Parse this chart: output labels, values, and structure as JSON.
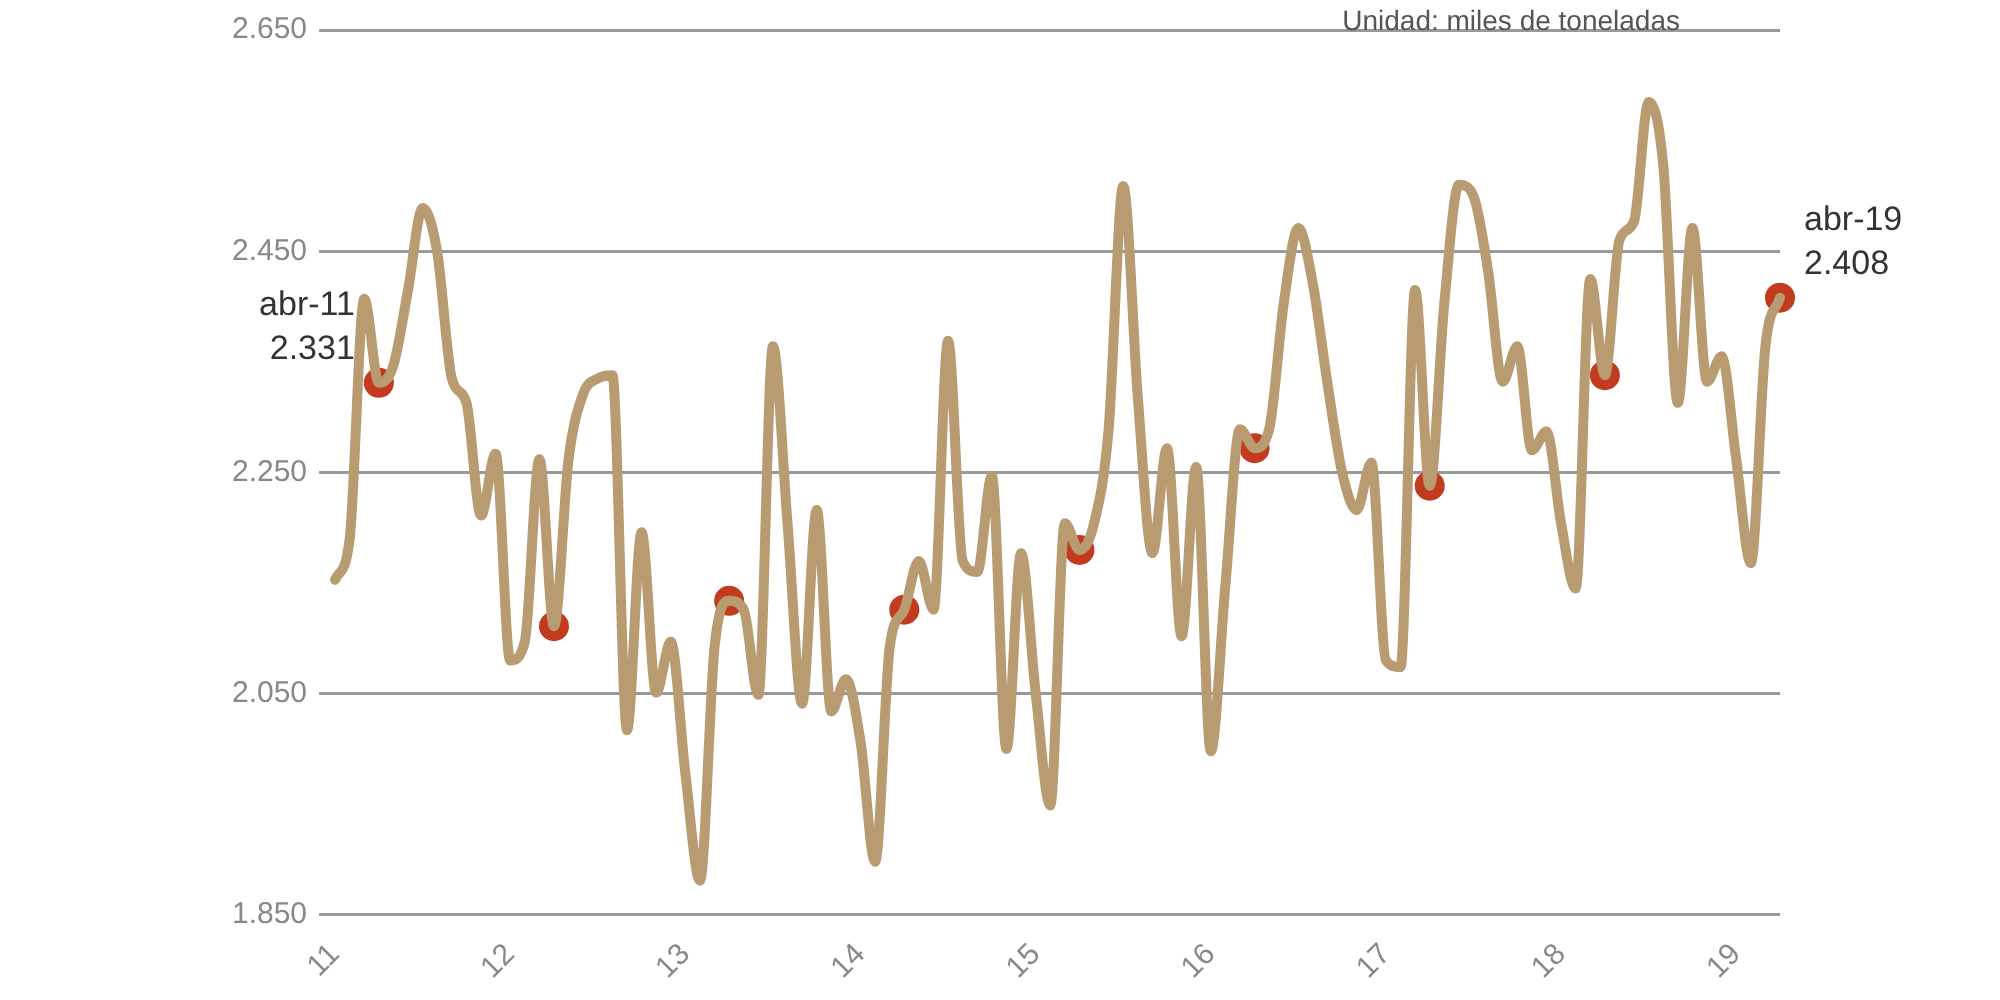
{
  "chart_data": {
    "type": "line",
    "categories": [
      "11",
      null,
      null,
      null,
      null,
      null,
      null,
      null,
      null,
      null,
      null,
      null,
      "12",
      null,
      null,
      null,
      null,
      null,
      null,
      null,
      null,
      null,
      null,
      null,
      "13",
      null,
      null,
      null,
      null,
      null,
      null,
      null,
      null,
      null,
      null,
      null,
      "14",
      null,
      null,
      null,
      null,
      null,
      null,
      null,
      null,
      null,
      null,
      null,
      "15",
      null,
      null,
      null,
      null,
      null,
      null,
      null,
      null,
      null,
      null,
      null,
      "16",
      null,
      null,
      null,
      null,
      null,
      null,
      null,
      null,
      null,
      null,
      null,
      "17",
      null,
      null,
      null,
      null,
      null,
      null,
      null,
      null,
      null,
      null,
      null,
      "18",
      null,
      null,
      null,
      null,
      null,
      null,
      null,
      null,
      null,
      null,
      null,
      "19",
      null,
      null,
      null
    ],
    "series": [
      {
        "type": "line",
        "marker": "none",
        "color": "#b99b72",
        "values": [
          2.153,
          2.19,
          2.407,
          2.331,
          2.347,
          2.415,
          2.489,
          2.449,
          2.335,
          2.313,
          2.211,
          2.267,
          2.08,
          2.097,
          2.262,
          2.111,
          2.262,
          2.321,
          2.335,
          2.338,
          2.017,
          2.196,
          2.051,
          2.097,
          1.978,
          1.881,
          2.092,
          2.134,
          2.126,
          2.049,
          2.364,
          2.204,
          2.041,
          2.216,
          2.034,
          2.063,
          2.007,
          1.898,
          2.092,
          2.126,
          2.17,
          2.126,
          2.369,
          2.17,
          2.16,
          2.247,
          2.0,
          2.177,
          2.051,
          1.949,
          2.204,
          2.18,
          2.204,
          2.289,
          2.509,
          2.318,
          2.177,
          2.272,
          2.102,
          2.255,
          1.998,
          2.148,
          2.289,
          2.272,
          2.289,
          2.403,
          2.471,
          2.42,
          2.33,
          2.25,
          2.216,
          2.259,
          2.08,
          2.074,
          2.415,
          2.238,
          2.403,
          2.51,
          2.5,
          2.432,
          2.332,
          2.364,
          2.27,
          2.287,
          2.204,
          2.145,
          2.425,
          2.338,
          2.46,
          2.477,
          2.585,
          2.528,
          2.313,
          2.471,
          2.332,
          2.355,
          2.262,
          2.168,
          2.364,
          2.408
        ]
      },
      {
        "type": "scatter",
        "marker": "circle",
        "color": "#c33b1f",
        "values": [
          null,
          null,
          null,
          2.331,
          null,
          null,
          null,
          null,
          null,
          null,
          null,
          null,
          null,
          null,
          null,
          2.111,
          null,
          null,
          null,
          null,
          null,
          null,
          null,
          null,
          null,
          null,
          null,
          2.134,
          null,
          null,
          null,
          null,
          null,
          null,
          null,
          null,
          null,
          null,
          null,
          2.126,
          null,
          null,
          null,
          null,
          null,
          null,
          null,
          null,
          null,
          null,
          null,
          2.18,
          null,
          null,
          null,
          null,
          null,
          null,
          null,
          null,
          null,
          null,
          null,
          2.272,
          null,
          null,
          null,
          null,
          null,
          null,
          null,
          null,
          null,
          null,
          null,
          2.238,
          null,
          null,
          null,
          null,
          null,
          null,
          null,
          null,
          null,
          null,
          null,
          2.338,
          null,
          null,
          null,
          null,
          null,
          null,
          null,
          null,
          null,
          null,
          null,
          2.408
        ],
        "value_labels": [
          null,
          null,
          null,
          "abr-11\n2.331",
          null,
          null,
          null,
          null,
          null,
          null,
          null,
          null,
          null,
          null,
          null,
          null,
          null,
          null,
          null,
          null,
          null,
          null,
          null,
          null,
          null,
          null,
          null,
          null,
          null,
          null,
          null,
          null,
          null,
          null,
          null,
          null,
          null,
          null,
          null,
          null,
          null,
          null,
          null,
          null,
          null,
          null,
          null,
          null,
          null,
          null,
          null,
          null,
          null,
          null,
          null,
          null,
          null,
          null,
          null,
          null,
          null,
          null,
          null,
          null,
          null,
          null,
          null,
          null,
          null,
          null,
          null,
          null,
          null,
          null,
          null,
          null,
          null,
          null,
          null,
          null,
          null,
          null,
          null,
          null,
          null,
          null,
          null,
          null,
          null,
          null,
          null,
          null,
          null,
          null,
          null,
          null,
          null,
          null,
          null,
          "abr-19\n2.408"
        ]
      }
    ],
    "ylim": [
      1.85,
      2.65
    ],
    "yticks": [
      {
        "value": 1.85,
        "label": "1.850"
      },
      {
        "value": 2.05,
        "label": "2.050"
      },
      {
        "value": 2.25,
        "label": "2.250"
      },
      {
        "value": 2.45,
        "label": "2.450"
      },
      {
        "value": 2.65,
        "label": "2.650"
      }
    ],
    "grid": "y",
    "legend": false,
    "line_style": "solid",
    "annotations": [
      "Unidad: miles de toneladas"
    ]
  }
}
